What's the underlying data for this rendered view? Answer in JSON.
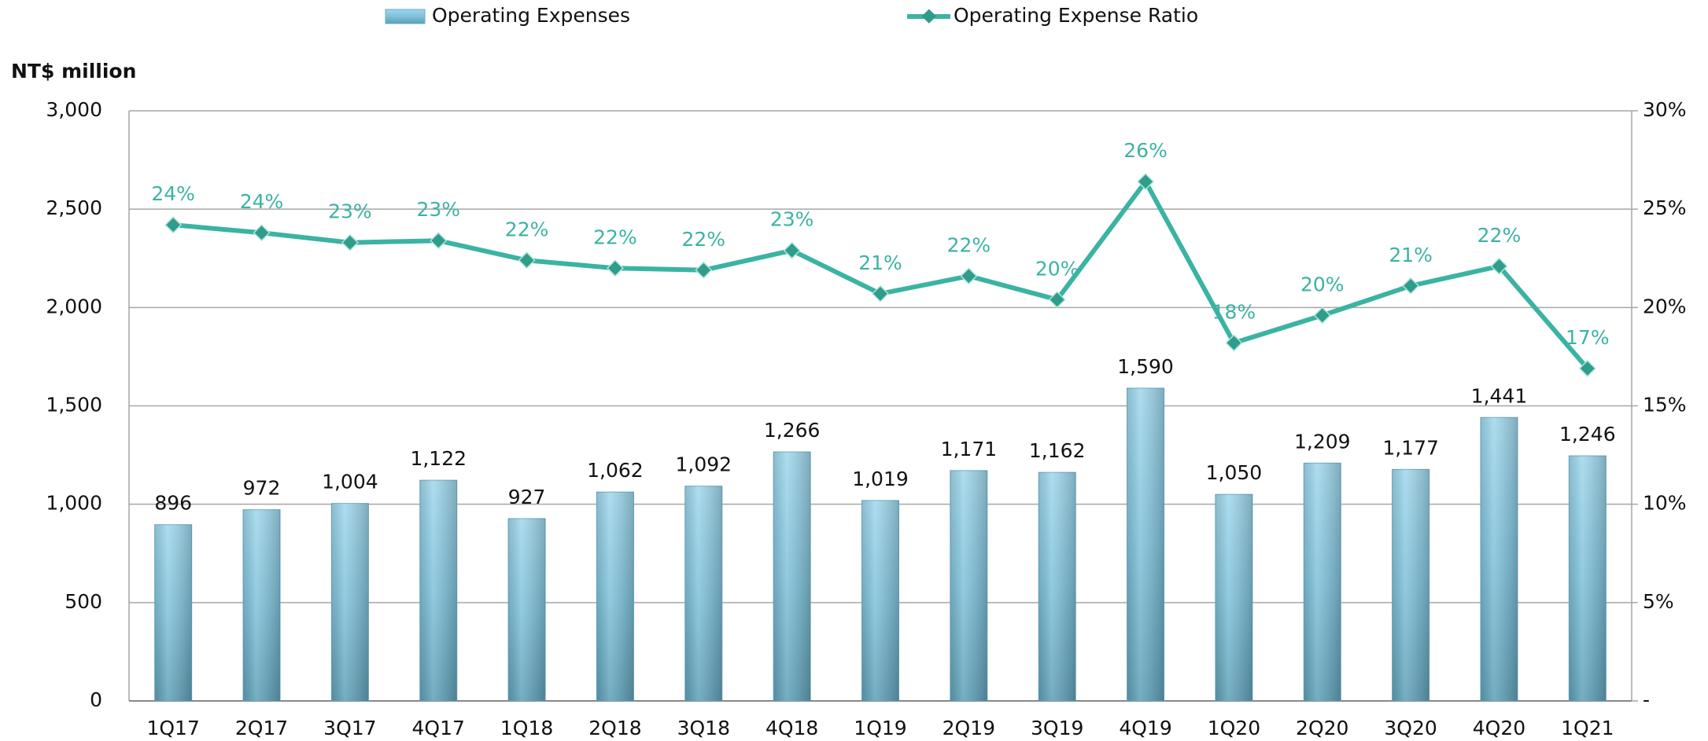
{
  "chart_data": {
    "type": "bar",
    "y_axis_label": "NT$ million",
    "categories": [
      "1Q17",
      "2Q17",
      "3Q17",
      "4Q17",
      "1Q18",
      "2Q18",
      "3Q18",
      "4Q18",
      "1Q19",
      "2Q19",
      "3Q19",
      "4Q19",
      "1Q20",
      "2Q20",
      "3Q20",
      "4Q20",
      "1Q21"
    ],
    "series": [
      {
        "name": "Operating Expenses",
        "type": "bar",
        "color": "#8ccbe3",
        "values": [
          896,
          972,
          1004,
          1122,
          927,
          1062,
          1092,
          1266,
          1019,
          1171,
          1162,
          1590,
          1050,
          1209,
          1177,
          1441,
          1246
        ],
        "value_labels": [
          "896",
          "972",
          "1,004",
          "1,122",
          "927",
          "1,062",
          "1,092",
          "1,266",
          "1,019",
          "1,171",
          "1,162",
          "1,590",
          "1,050",
          "1,209",
          "1,177",
          "1,441",
          "1,246"
        ]
      },
      {
        "name": "Operating Expense Ratio",
        "type": "line",
        "axis": "y2",
        "color": "#3bb3a3",
        "values": [
          24.2,
          23.8,
          23.3,
          23.4,
          22.4,
          22.0,
          21.9,
          22.9,
          20.7,
          21.6,
          20.4,
          26.4,
          18.2,
          19.6,
          21.1,
          22.1,
          16.9
        ],
        "value_labels": [
          "24%",
          "24%",
          "23%",
          "23%",
          "22%",
          "22%",
          "22%",
          "23%",
          "21%",
          "22%",
          "20%",
          "26%",
          "18%",
          "20%",
          "21%",
          "22%",
          "17%"
        ]
      }
    ],
    "ylim": [
      0,
      3000
    ],
    "yticks": [
      0,
      {
        "value": 500,
        "label": "500"
      },
      {
        "value": 1000,
        "label": "1,000"
      },
      {
        "value": 1500,
        "label": "1,500"
      },
      {
        "value": 2000,
        "label": "2,000"
      },
      {
        "value": 2500,
        "label": "2,500"
      },
      {
        "value": 3000,
        "label": "3,000"
      }
    ],
    "y2lim": [
      0,
      30
    ],
    "y2ticks": [
      {
        "value": 0,
        "label": "-"
      },
      {
        "value": 5,
        "label": "5%"
      },
      {
        "value": 10,
        "label": "10%"
      },
      {
        "value": 15,
        "label": "15%"
      },
      {
        "value": 20,
        "label": "20%"
      },
      {
        "value": 25,
        "label": "25%"
      },
      {
        "value": 30,
        "label": "30%"
      }
    ],
    "grid": true,
    "legend": "top"
  }
}
